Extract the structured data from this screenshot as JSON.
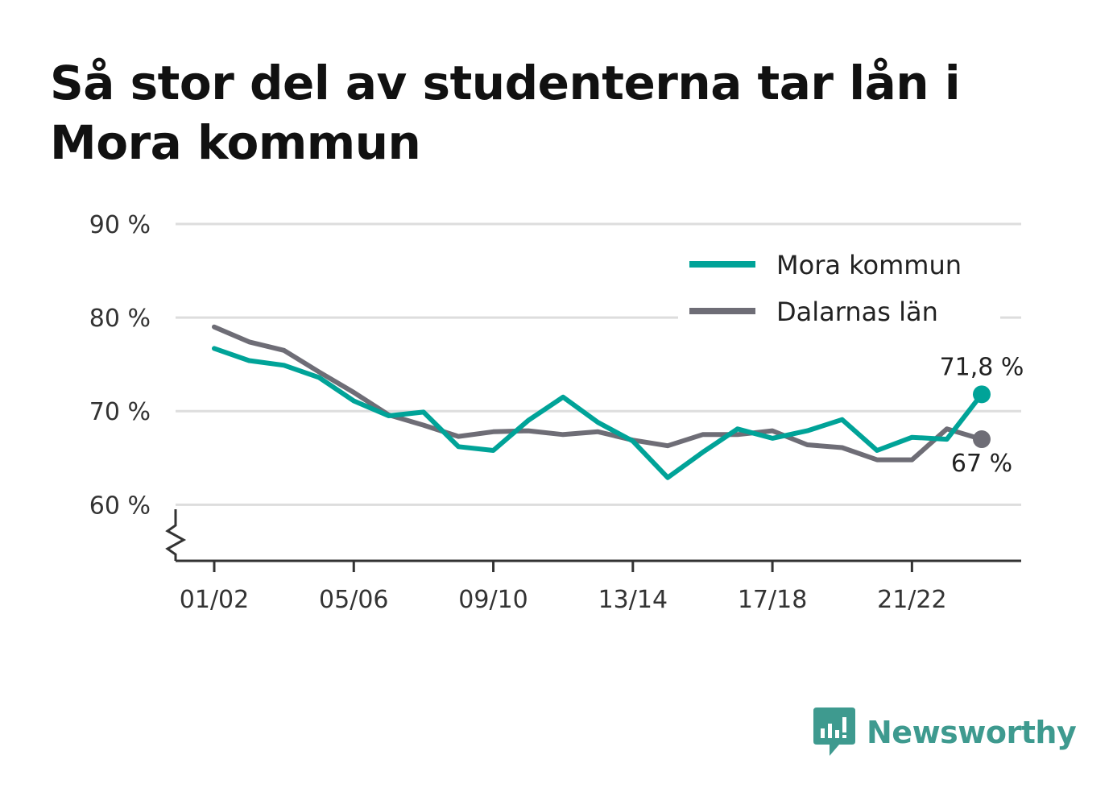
{
  "title": "Så stor del av studenterna tar lån i Mora kommun",
  "brand": {
    "name": "Newsworthy",
    "icon": "bar-chart-speech-icon",
    "color": "#3e9a8f"
  },
  "chart_data": {
    "type": "line",
    "title": "Så stor del av studenterna tar lån i Mora kommun",
    "xlabel": "",
    "ylabel": "",
    "ylim": [
      54,
      90
    ],
    "y_ticks": [
      60,
      70,
      80,
      90
    ],
    "y_tick_labels": [
      "60 %",
      "70 %",
      "80 %",
      "90 %"
    ],
    "y_axis_break": true,
    "grid": true,
    "legend_position": "top-right",
    "categories": [
      "01/02",
      "02/03",
      "03/04",
      "04/05",
      "05/06",
      "06/07",
      "07/08",
      "08/09",
      "09/10",
      "10/11",
      "11/12",
      "12/13",
      "13/14",
      "14/15",
      "15/16",
      "16/17",
      "17/18",
      "18/19",
      "19/20",
      "20/21",
      "21/22",
      "22/23",
      "23/24"
    ],
    "x_tick_labels": [
      "01/02",
      "05/06",
      "09/10",
      "13/14",
      "17/18",
      "21/22"
    ],
    "series": [
      {
        "name": "Mora kommun",
        "color": "#00a398",
        "values": [
          76.7,
          75.4,
          74.9,
          73.6,
          71.1,
          69.5,
          69.9,
          66.2,
          65.8,
          69.0,
          71.5,
          68.8,
          66.8,
          62.9,
          65.6,
          68.1,
          67.1,
          67.9,
          69.1,
          65.8,
          67.2,
          67.0,
          71.8
        ],
        "end_label": "71,8 %"
      },
      {
        "name": "Dalarnas län",
        "color": "#6e6d76",
        "values": [
          79.0,
          77.4,
          76.5,
          74.2,
          72.0,
          69.6,
          68.5,
          67.3,
          67.8,
          67.9,
          67.5,
          67.8,
          66.9,
          66.3,
          67.5,
          67.5,
          67.9,
          66.4,
          66.1,
          64.8,
          64.8,
          68.1,
          67.0
        ],
        "end_label": "67 %"
      }
    ],
    "colors": {
      "grid": "#dddddd",
      "axis": "#333333"
    }
  }
}
